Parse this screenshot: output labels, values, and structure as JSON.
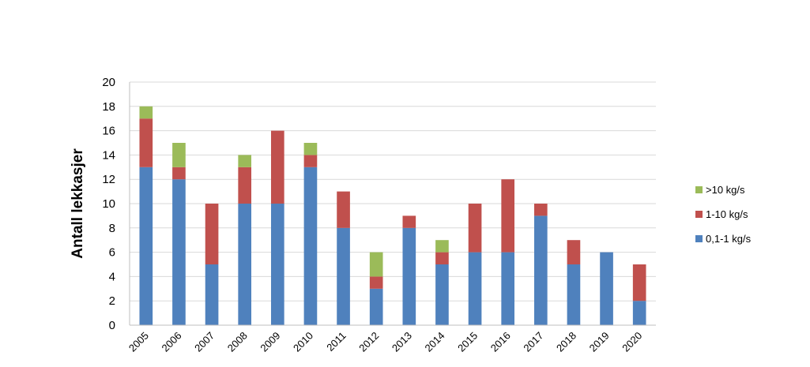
{
  "chart_data": {
    "type": "bar",
    "stacked": true,
    "ylabel": "Antall  lekkasjer",
    "xlabel": "",
    "ylim": [
      0,
      20
    ],
    "yticks": [
      "0",
      "2",
      "4",
      "6",
      "8",
      "10",
      "12",
      "14",
      "16",
      "18",
      "20"
    ],
    "grid": true,
    "legend_position": "right",
    "categories": [
      "2005",
      "2006",
      "2007",
      "2008",
      "2009",
      "2010",
      "2011",
      "2012",
      "2013",
      "2014",
      "2015",
      "2016",
      "2017",
      "2018",
      "2019",
      "2020"
    ],
    "series": [
      {
        "name": "0,1-1 kg/s",
        "color": "#4f81bd",
        "values": [
          13,
          12,
          5,
          10,
          10,
          13,
          8,
          3,
          8,
          5,
          6,
          6,
          9,
          5,
          6,
          2
        ]
      },
      {
        "name": "1-10 kg/s",
        "color": "#c0504d",
        "values": [
          4,
          1,
          5,
          3,
          6,
          1,
          3,
          1,
          1,
          1,
          4,
          6,
          1,
          2,
          0,
          3
        ]
      },
      {
        "name": ">10 kg/s",
        "color": "#9bbb59",
        "values": [
          1,
          2,
          0,
          1,
          0,
          1,
          0,
          2,
          0,
          1,
          0,
          0,
          0,
          0,
          0,
          0
        ]
      }
    ]
  }
}
